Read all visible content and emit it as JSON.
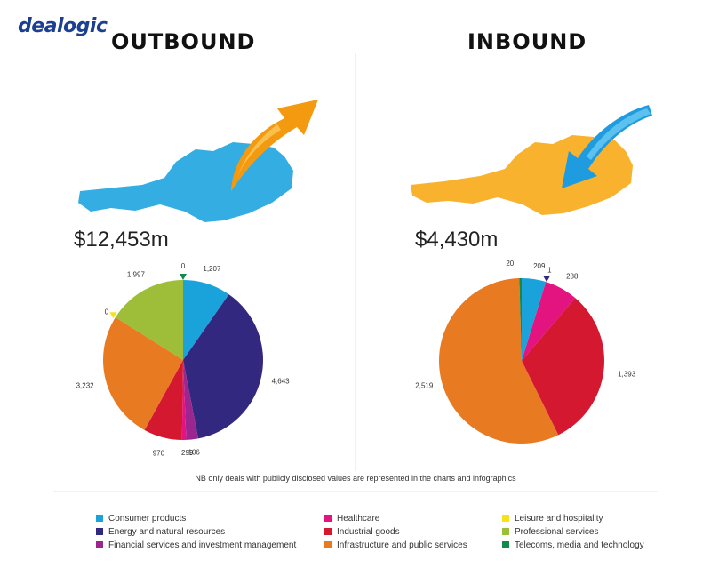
{
  "logo": "dealogic",
  "panels": {
    "outbound": {
      "heading": "OUTBOUND",
      "total": "$12,453m"
    },
    "inbound": {
      "heading": "INBOUND",
      "total": "$4,430m"
    }
  },
  "note": "NB only deals with publicly disclosed values are represented in the charts and infographics",
  "colors": {
    "consumer": "#1aa3db",
    "energy": "#33287f",
    "financial": "#9b2690",
    "healthcare": "#e3137f",
    "industrial": "#d3182f",
    "infrastructure": "#e87a22",
    "leisure": "#f6e316",
    "professional": "#9ebe39",
    "telecoms": "#108b48",
    "map_outbound": "#33ade2",
    "map_inbound": "#f8b22e",
    "arrow_outbound": "#f39a11",
    "arrow_inbound": "#1f9ce0"
  },
  "legend": [
    {
      "label": "Consumer products",
      "key": "consumer"
    },
    {
      "label": "Healthcare",
      "key": "healthcare"
    },
    {
      "label": "Leisure and hospitality",
      "key": "leisure"
    },
    {
      "label": "Energy and natural resources",
      "key": "energy"
    },
    {
      "label": "Industrial goods",
      "key": "industrial"
    },
    {
      "label": "Professional services",
      "key": "professional"
    },
    {
      "label": "Financial services and investment management",
      "key": "financial"
    },
    {
      "label": "Infrastructure and public services",
      "key": "infrastructure"
    },
    {
      "label": "Telecoms, media and technology",
      "key": "telecoms"
    }
  ],
  "chart_data": [
    {
      "type": "pie",
      "title": "OUTBOUND",
      "total": "$12,453m",
      "unit": "$m",
      "slices": [
        {
          "name": "Consumer products",
          "key": "consumer",
          "value": 1207,
          "label": "1,207"
        },
        {
          "name": "Energy and natural resources",
          "key": "energy",
          "value": 4643,
          "label": "4,643"
        },
        {
          "name": "Financial services and investment management",
          "key": "financial",
          "value": 299,
          "label": "299"
        },
        {
          "name": "Healthcare",
          "key": "healthcare",
          "value": 106,
          "label": "106"
        },
        {
          "name": "Industrial goods",
          "key": "industrial",
          "value": 970,
          "label": "970"
        },
        {
          "name": "Infrastructure and public services",
          "key": "infrastructure",
          "value": 3232,
          "label": "3,232"
        },
        {
          "name": "Leisure and hospitality",
          "key": "leisure",
          "value": 0,
          "label": "0"
        },
        {
          "name": "Professional services",
          "key": "professional",
          "value": 1997,
          "label": "1,997"
        },
        {
          "name": "Telecoms, media and technology",
          "key": "telecoms",
          "value": 0,
          "label": "0"
        }
      ]
    },
    {
      "type": "pie",
      "title": "INBOUND",
      "total": "$4,430m",
      "unit": "$m",
      "slices": [
        {
          "name": "Consumer products",
          "key": "consumer",
          "value": 209,
          "label": "209"
        },
        {
          "name": "Energy and natural resources",
          "key": "energy",
          "value": 1,
          "label": "1"
        },
        {
          "name": "Healthcare",
          "key": "healthcare",
          "value": 288,
          "label": "288"
        },
        {
          "name": "Industrial goods",
          "key": "industrial",
          "value": 1393,
          "label": "1,393"
        },
        {
          "name": "Infrastructure and public services",
          "key": "infrastructure",
          "value": 2519,
          "label": "2,519"
        },
        {
          "name": "Telecoms, media and technology",
          "key": "telecoms",
          "value": 20,
          "label": "20"
        }
      ]
    }
  ]
}
